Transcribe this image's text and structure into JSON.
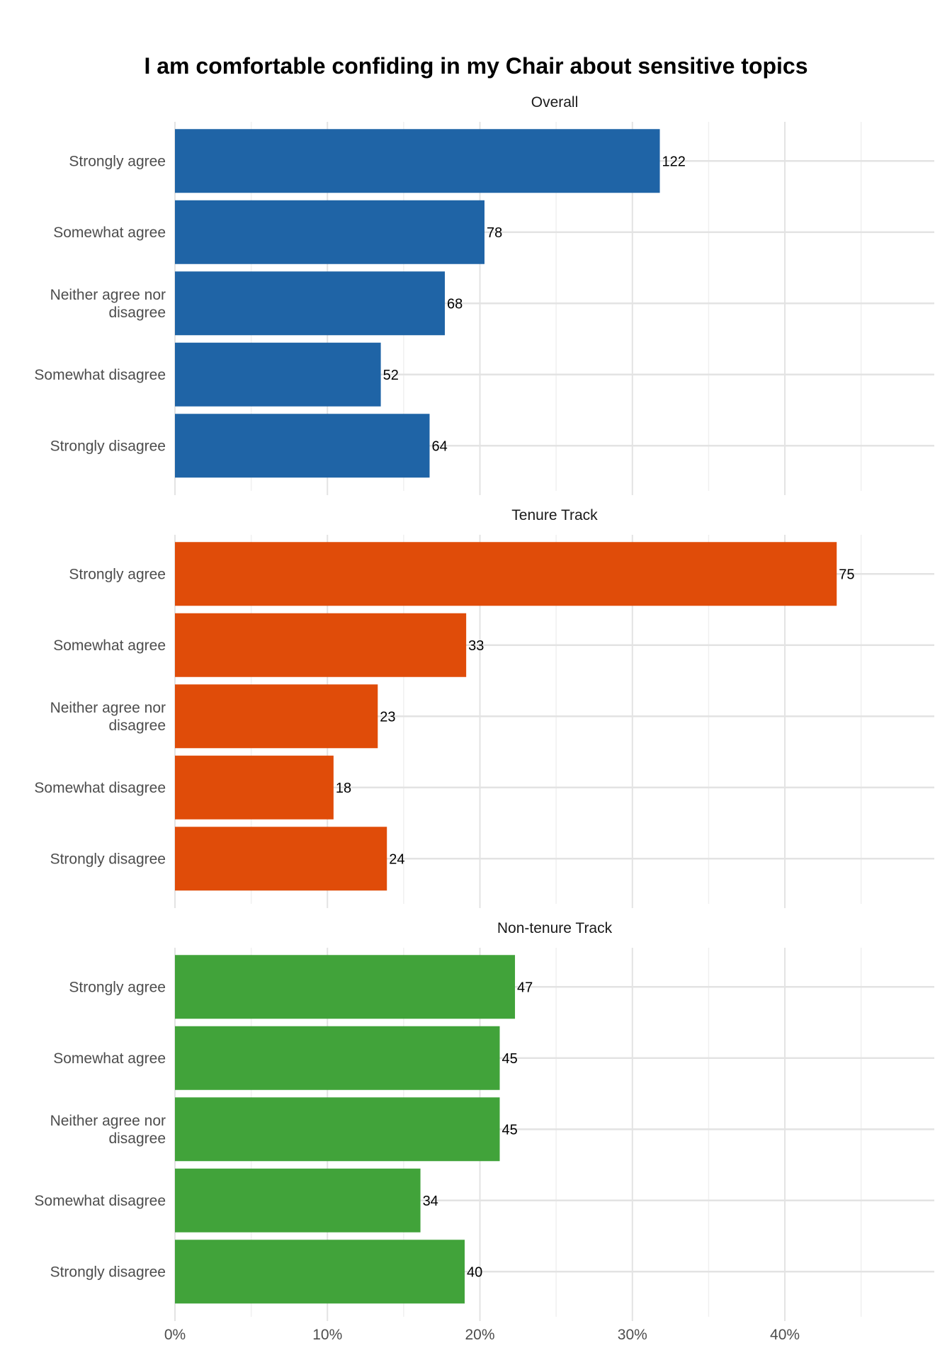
{
  "chart_data": {
    "type": "bar",
    "orientation": "horizontal",
    "title": "I am comfortable confiding in my Chair about sensitive topics",
    "categories": [
      "Strongly agree",
      "Somewhat agree",
      "Neither agree nor disagree",
      "Somewhat disagree",
      "Strongly disagree"
    ],
    "category_lines": [
      [
        "Strongly agree"
      ],
      [
        "Somewhat agree"
      ],
      [
        "Neither agree nor",
        "disagree"
      ],
      [
        "Somewhat disagree"
      ],
      [
        "Strongly disagree"
      ]
    ],
    "x_axis": {
      "ticks": [
        0,
        10,
        20,
        30,
        40
      ],
      "tick_labels": [
        "0%",
        "10%",
        "20%",
        "30%",
        "40%"
      ],
      "xlim": [
        0,
        49.8
      ],
      "unit": "percent"
    },
    "grid": true,
    "facets": [
      {
        "name": "Overall",
        "color": "#1f64a6",
        "percent": [
          31.8,
          20.3,
          17.7,
          13.5,
          16.7
        ],
        "counts": [
          122,
          78,
          68,
          52,
          64
        ]
      },
      {
        "name": "Tenure Track",
        "color": "#e04c09",
        "percent": [
          43.4,
          19.1,
          13.3,
          10.4,
          13.9
        ],
        "counts": [
          75,
          33,
          23,
          18,
          24
        ]
      },
      {
        "name": "Non-tenure Track",
        "color": "#41a33a",
        "percent": [
          22.3,
          21.3,
          21.3,
          16.1,
          19.0
        ],
        "counts": [
          47,
          45,
          45,
          34,
          40
        ]
      }
    ]
  }
}
